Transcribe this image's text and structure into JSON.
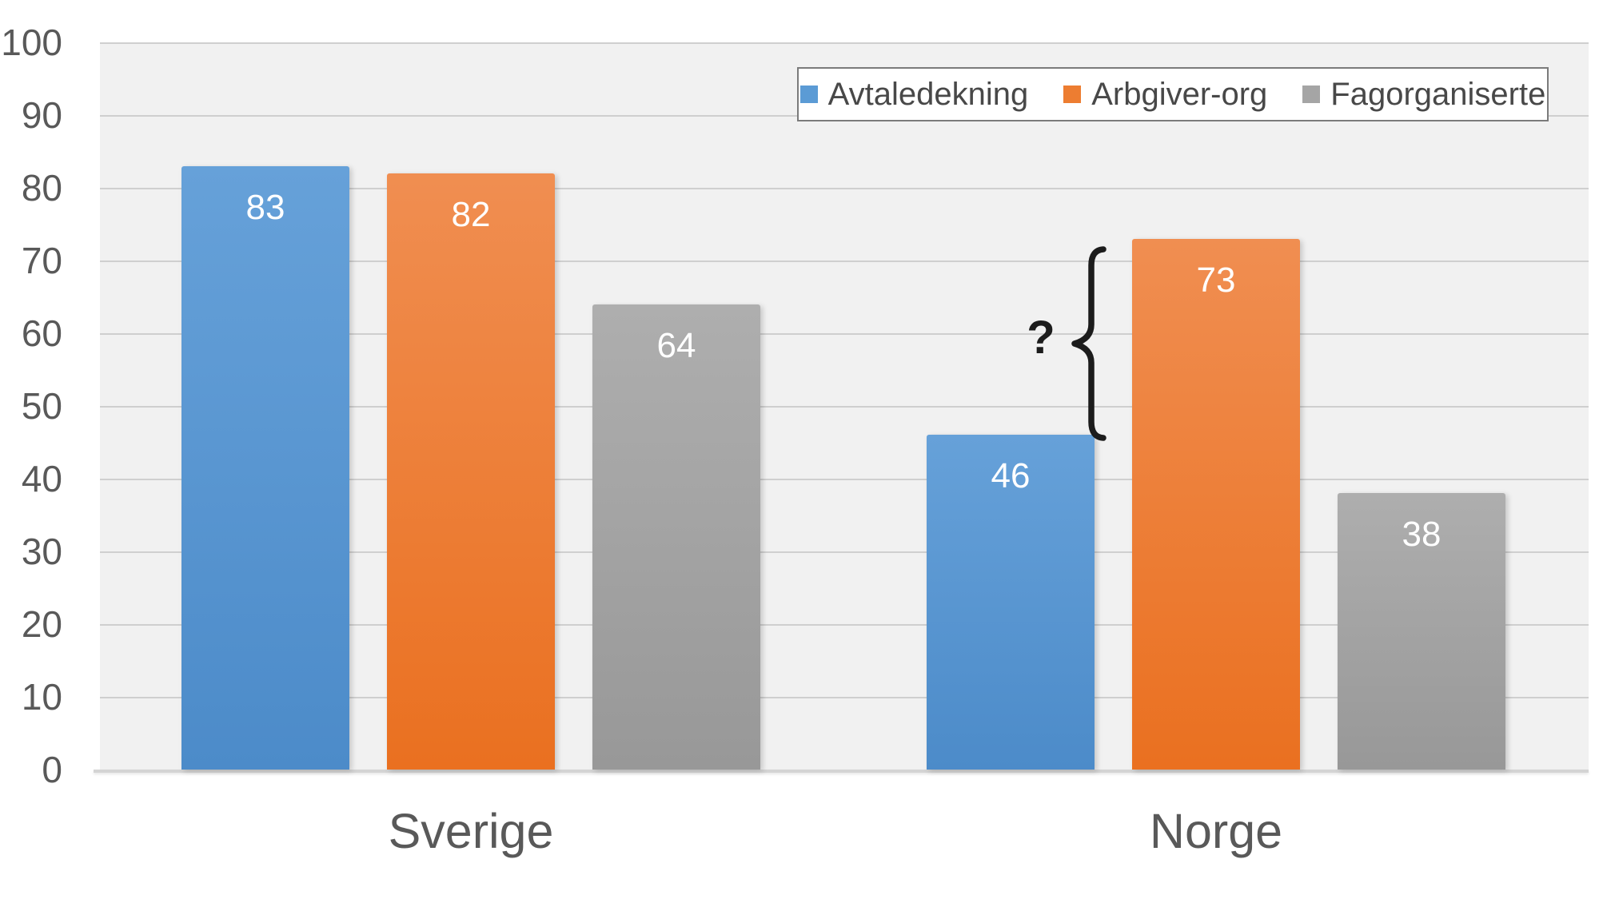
{
  "chart_data": {
    "type": "bar",
    "title": "",
    "xlabel": "",
    "ylabel": "",
    "categories": [
      "Sverige",
      "Norge"
    ],
    "series": [
      {
        "name": "Avtaledekning",
        "color": "#5B9BD5",
        "color_light": "#66a1d9",
        "color_dark": "#4c8bc9",
        "values": [
          83,
          46
        ]
      },
      {
        "name": "Arbgiver-org",
        "color": "#ED7D31",
        "color_light": "#f08e51",
        "color_dark": "#ea7020",
        "values": [
          82,
          73
        ]
      },
      {
        "name": "Fagorganiserte",
        "color": "#A5A5A5",
        "color_light": "#aeaeae",
        "color_dark": "#989898",
        "values": [
          64,
          38
        ]
      }
    ],
    "bar_value_labels": [
      [
        "83",
        "82",
        "64"
      ],
      [
        "46",
        "73",
        "38"
      ]
    ],
    "ylim": [
      0,
      100
    ],
    "y_ticks": [
      0,
      10,
      20,
      30,
      40,
      50,
      60,
      70,
      80,
      90,
      100
    ],
    "grid": true,
    "legend_position": "top-right"
  },
  "annotation": {
    "question_mark": "?",
    "brace_icon": "curly-brace"
  },
  "colors": {
    "page_bg": "#ffffff",
    "plot_bg": "#f1f1f1",
    "gridline": "#cfcfcf",
    "axis_line": "#d4d4d4",
    "axis_text": "#595959",
    "bar_label_text": "#ffffff",
    "legend_border": "#7b7b7b",
    "legend_text": "#484848",
    "annotation_color": "#1c1c1c"
  }
}
